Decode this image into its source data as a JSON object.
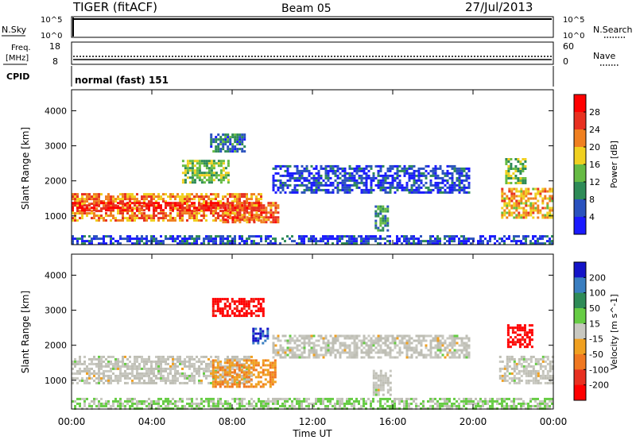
{
  "header": {
    "radar": "TIGER (fitACF)",
    "beam": "Beam 05",
    "date": "27/Jul/2013"
  },
  "strip_nsky": {
    "left_label": "N.Sky",
    "right_label": "N.Search",
    "left_ticks": [
      "10^5",
      "10^0"
    ],
    "right_ticks": [
      "10^5",
      "10^0"
    ]
  },
  "strip_freq": {
    "left_label_1": "Freq.",
    "left_label_2": "[MHz]",
    "left_ticks": [
      "18",
      "8"
    ],
    "right_label": "Nave",
    "right_ticks": [
      "60",
      "0"
    ]
  },
  "strip_cpid": {
    "label": "CPID",
    "value": "normal (fast) 151"
  },
  "x_axis": {
    "label": "Time UT",
    "ticks": [
      "00:00",
      "04:00",
      "08:00",
      "12:00",
      "16:00",
      "20:00",
      "00:00"
    ]
  },
  "colors": {
    "power": [
      "#1a1aff",
      "#2a52be",
      "#2e8b57",
      "#66bb44",
      "#f0d020",
      "#f08020",
      "#e83020",
      "#ff0000"
    ],
    "velocity": [
      "#1414c8",
      "#3a7ec0",
      "#2e8b57",
      "#66cc44",
      "#c8c8c0",
      "#f0a020",
      "#f07820",
      "#e83020",
      "#ff0000"
    ],
    "ground_scatter": "#bebeb4"
  },
  "chart_data": [
    {
      "type": "heatmap",
      "title": "Power",
      "xlabel": "Time UT",
      "ylabel": "Slant Range [km]",
      "xlim_hours": [
        0,
        24
      ],
      "ylim": [
        180,
        4600
      ],
      "y_ticks": [
        "1000",
        "2000",
        "3000",
        "4000"
      ],
      "colorbar": {
        "label": "Power [dB]",
        "ticks": [
          "4",
          "8",
          "12",
          "16",
          "20",
          "24",
          "28"
        ],
        "range": [
          0,
          32
        ]
      },
      "regions": [
        {
          "t": [
            0.0,
            9.5
          ],
          "range_km": [
            900,
            1650
          ],
          "level_db": 22
        },
        {
          "t": [
            0.0,
            9.5
          ],
          "range_km": [
            1150,
            1400
          ],
          "level_db": 28
        },
        {
          "t": [
            7.5,
            10.3
          ],
          "range_km": [
            800,
            1400
          ],
          "level_db": 24
        },
        {
          "t": [
            6.9,
            8.6
          ],
          "range_km": [
            2850,
            3350
          ],
          "level_db": 8
        },
        {
          "t": [
            5.5,
            7.8
          ],
          "range_km": [
            1950,
            2600
          ],
          "level_db": 14
        },
        {
          "t": [
            10.0,
            19.8
          ],
          "range_km": [
            1650,
            2450
          ],
          "level_db": 5
        },
        {
          "t": [
            15.1,
            15.8
          ],
          "range_km": [
            600,
            1300
          ],
          "level_db": 11
        },
        {
          "t": [
            21.4,
            24.0
          ],
          "range_km": [
            950,
            1800
          ],
          "level_db": 20
        },
        {
          "t": [
            21.6,
            22.6
          ],
          "range_km": [
            1950,
            2650
          ],
          "level_db": 14
        },
        {
          "t": [
            0.0,
            24.0
          ],
          "range_km": [
            180,
            450
          ],
          "level_db": 5
        }
      ]
    },
    {
      "type": "heatmap",
      "title": "Velocity",
      "xlabel": "Time UT",
      "ylabel": "Slant Range [km]",
      "xlim_hours": [
        0,
        24
      ],
      "ylim": [
        180,
        4600
      ],
      "y_ticks": [
        "1000",
        "2000",
        "3000",
        "4000"
      ],
      "colorbar": {
        "label": "Velocity [m s^-1]",
        "ticks": [
          "200",
          "100",
          "50",
          "15",
          "-15",
          "-50",
          "-100",
          "-200"
        ],
        "range": [
          -250,
          250
        ]
      },
      "regions": [
        {
          "t": [
            0.0,
            9.0
          ],
          "range_km": [
            900,
            1700
          ],
          "velocity": 0
        },
        {
          "t": [
            7.0,
            10.2
          ],
          "range_km": [
            800,
            1600
          ],
          "velocity": -80
        },
        {
          "t": [
            7.0,
            9.6
          ],
          "range_km": [
            2850,
            3350
          ],
          "velocity": -220
        },
        {
          "t": [
            9.0,
            9.8
          ],
          "range_km": [
            2050,
            2500
          ],
          "velocity": 200
        },
        {
          "t": [
            10.0,
            19.8
          ],
          "range_km": [
            1650,
            2300
          ],
          "velocity": 0
        },
        {
          "t": [
            15.0,
            15.9
          ],
          "range_km": [
            600,
            1300
          ],
          "velocity": 0
        },
        {
          "t": [
            21.3,
            24.0
          ],
          "range_km": [
            950,
            1700
          ],
          "velocity": 0
        },
        {
          "t": [
            21.7,
            22.9
          ],
          "range_km": [
            1950,
            2600
          ],
          "velocity": -220
        },
        {
          "t": [
            0.0,
            24.0
          ],
          "range_km": [
            180,
            500
          ],
          "velocity": 30
        }
      ]
    }
  ]
}
